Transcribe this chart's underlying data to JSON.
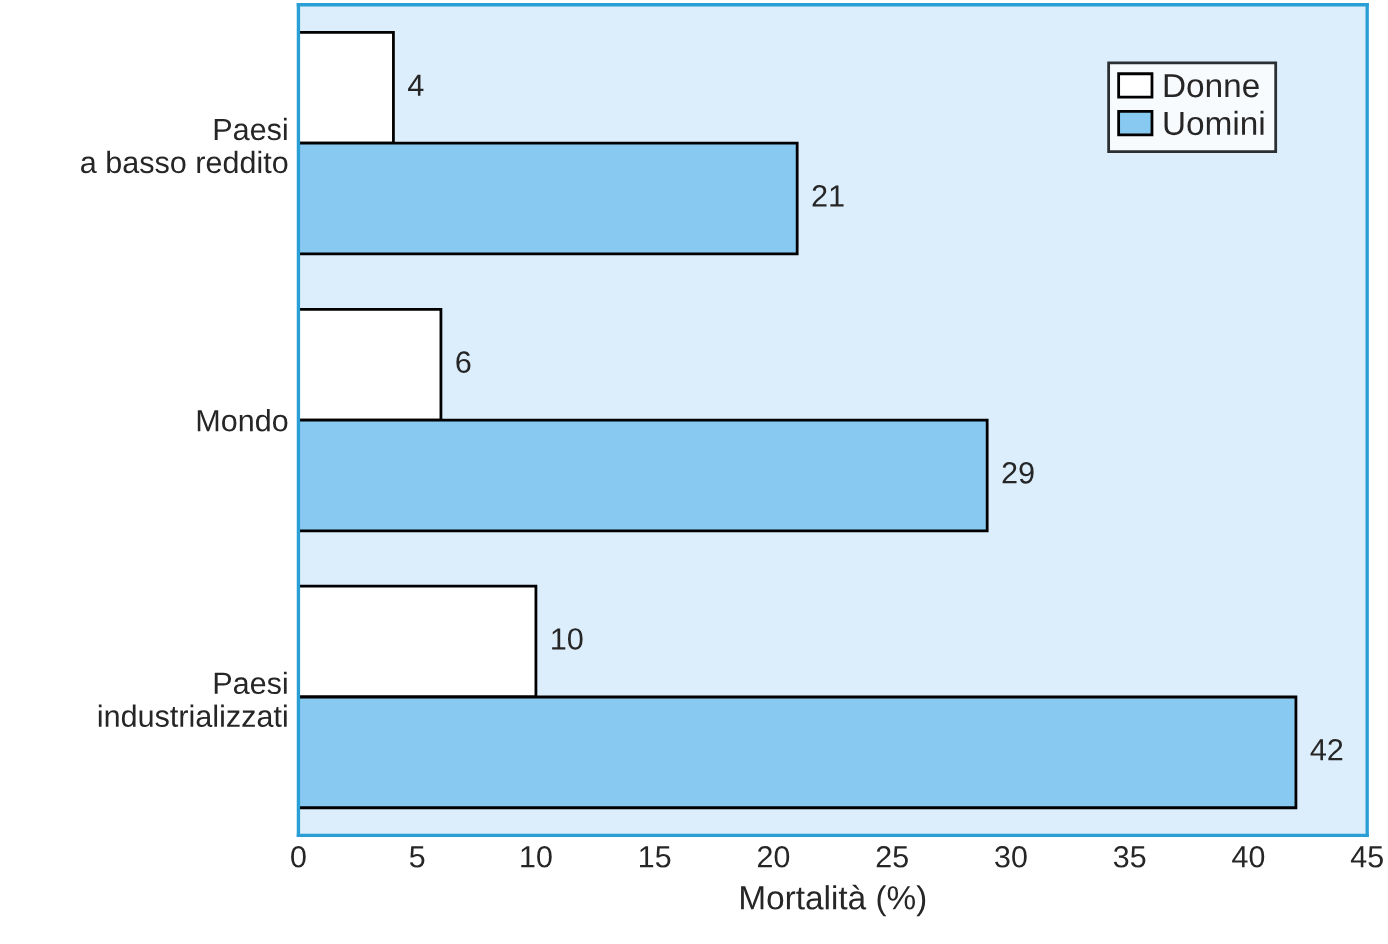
{
  "chart_data": {
    "type": "bar",
    "orientation": "horizontal",
    "xlabel": "Mortalità (%)",
    "categories": [
      "Paesi\na basso reddito",
      "Mondo",
      "Paesi\nindustrializzati"
    ],
    "series": [
      {
        "name": "Donne",
        "color": "#ffffff",
        "values": [
          4,
          6,
          10
        ]
      },
      {
        "name": "Uomini",
        "color": "#87c9f0",
        "values": [
          21,
          29,
          42
        ]
      }
    ],
    "xlim": [
      0,
      45
    ],
    "xticks": [
      0,
      5,
      10,
      15,
      20,
      25,
      30,
      35,
      40,
      45
    ],
    "data_labels": true,
    "legend": "top right",
    "grid": false
  }
}
